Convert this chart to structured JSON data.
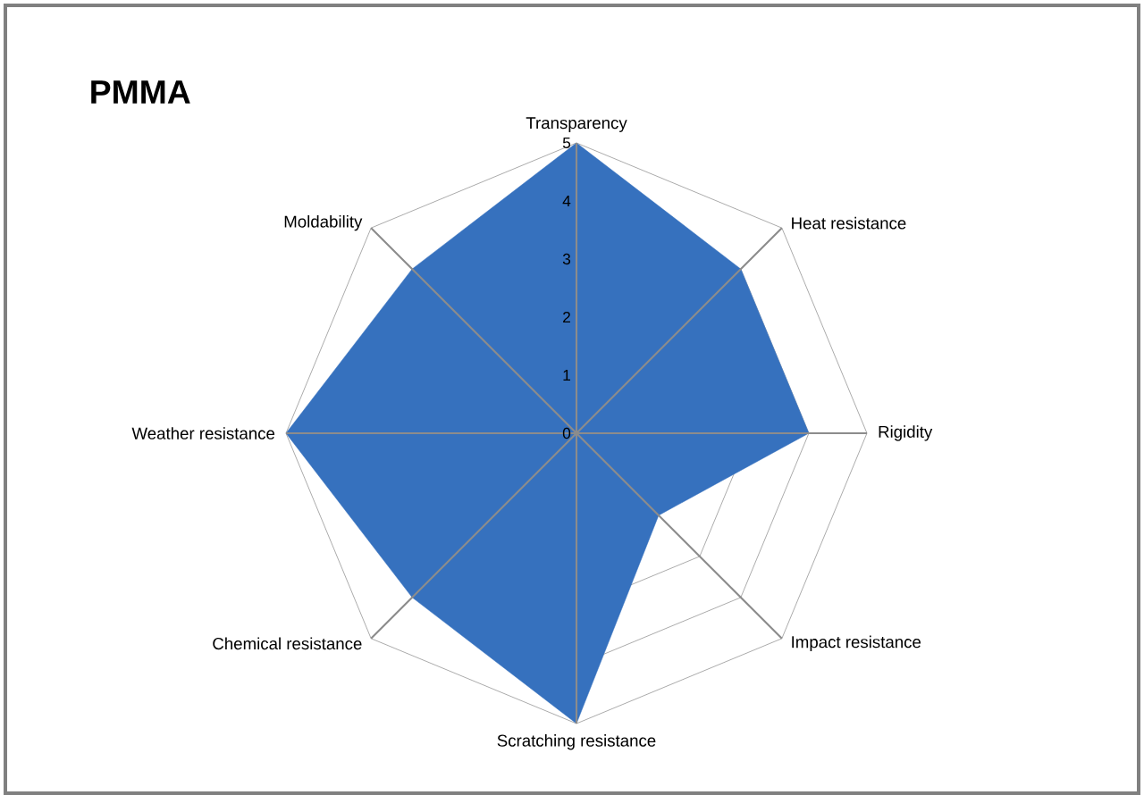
{
  "chart_data": {
    "type": "radar",
    "title": "PMMA",
    "categories": [
      "Transparency",
      "Heat resistance",
      "Rigidity",
      "Impact resistance",
      "Scratching resistance",
      "Chemical resistance",
      "Weather resistance",
      "Moldability"
    ],
    "series": [
      {
        "color": "#3671be",
        "values": [
          5,
          4,
          4,
          2,
          5,
          4,
          5,
          4
        ]
      }
    ],
    "ylim": [
      0,
      5
    ],
    "yticks": [
      0,
      1,
      2,
      3,
      4,
      5
    ],
    "grid": true
  }
}
